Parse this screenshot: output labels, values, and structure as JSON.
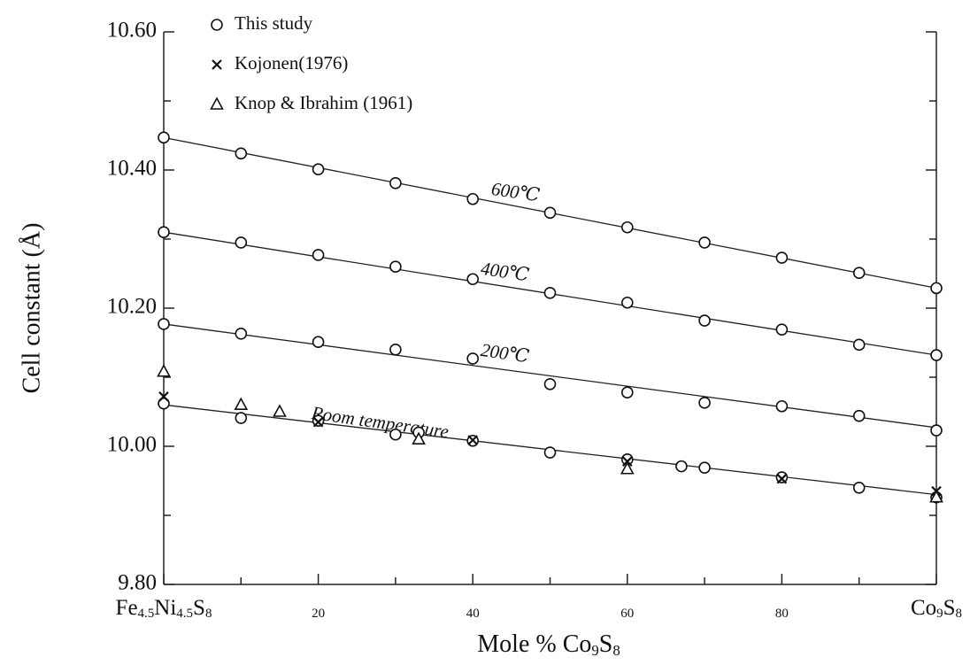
{
  "chart_data": {
    "type": "scatter",
    "x_label": "Mole % Co9S8",
    "y_label": "Cell constant (Å)",
    "xlim": [
      0,
      100
    ],
    "ylim": [
      9.8,
      10.6
    ],
    "xticks": [
      {
        "value": 0,
        "label": "Fe4.5Ni4.5S8"
      },
      20,
      40,
      60,
      80,
      {
        "value": 100,
        "label": "Co9S8"
      }
    ],
    "xticks_minor": [
      10,
      30,
      50,
      70,
      90
    ],
    "yticks": [
      {
        "value": 9.8,
        "label": "9.80"
      },
      {
        "value": 10,
        "label": "10.00"
      },
      {
        "value": 10.2,
        "label": "10.20"
      },
      {
        "value": 10.4,
        "label": "10.40"
      },
      {
        "value": 10.6,
        "label": "10.60"
      }
    ],
    "yticks_minor": [
      9.9,
      10.1,
      10.3,
      10.5
    ],
    "series": [
      {
        "name": "This study",
        "marker": "circle",
        "color": "#111111",
        "x": [
          0,
          10,
          20,
          30,
          40,
          50,
          60,
          70,
          80,
          90,
          100,
          0,
          10,
          20,
          30,
          40,
          50,
          60,
          70,
          80,
          90,
          100,
          0,
          10,
          20,
          30,
          40,
          50,
          60,
          70,
          80,
          90,
          100,
          0,
          10,
          20,
          30,
          33,
          40,
          50,
          60,
          67,
          70,
          80,
          90,
          100
        ],
        "values": [
          10.447,
          10.424,
          10.401,
          10.381,
          10.358,
          10.338,
          10.317,
          10.295,
          10.273,
          10.251,
          10.229,
          10.31,
          10.295,
          10.277,
          10.26,
          10.242,
          10.222,
          10.208,
          10.182,
          10.169,
          10.147,
          10.132,
          10.177,
          10.163,
          10.151,
          10.14,
          10.127,
          10.09,
          10.078,
          10.063,
          10.058,
          10.044,
          10.023,
          10.062,
          10.041,
          10.037,
          10.017,
          10.02,
          10.008,
          9.991,
          9.981,
          9.971,
          9.969,
          9.955,
          9.94,
          9.926
        ]
      },
      {
        "name": "Kojonen(1976)",
        "marker": "x",
        "color": "#111111",
        "x": [
          0,
          20,
          40,
          60,
          80,
          100
        ],
        "values": [
          10.072,
          10.035,
          10.009,
          9.978,
          9.953,
          9.935
        ]
      },
      {
        "name": "Knop & Ibrahim (1961)",
        "marker": "triangle",
        "color": "#111111",
        "x": [
          0,
          10,
          15,
          33,
          60,
          100
        ],
        "values": [
          10.108,
          10.06,
          10.05,
          10.01,
          9.967,
          9.926
        ]
      }
    ],
    "fit_lines": [
      {
        "label": "600℃",
        "x": [
          0,
          100
        ],
        "values": [
          10.447,
          10.229
        ]
      },
      {
        "label": "400℃",
        "x": [
          0,
          100
        ],
        "values": [
          10.31,
          10.132
        ]
      },
      {
        "label": "200℃",
        "x": [
          0,
          100
        ],
        "values": [
          10.177,
          10.027
        ]
      },
      {
        "label": "Room temperature",
        "x": [
          0,
          100
        ],
        "values": [
          10.06,
          9.93
        ]
      }
    ]
  }
}
